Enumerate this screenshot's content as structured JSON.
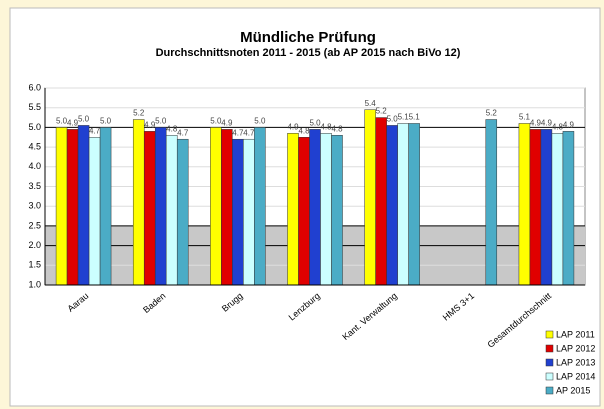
{
  "chart_data": {
    "type": "bar",
    "title": "Mündliche Prüfung",
    "subtitle": "Durchschnittsnoten 2011 - 2015 (ab AP 2015 nach BiVo 12)",
    "categories": [
      "Aarau",
      "Baden",
      "Brugg",
      "Lenzburg",
      "Kant. Verwaltung",
      "HMS 3+1",
      "Gesamtdurchschnitt"
    ],
    "series": [
      {
        "name": "LAP 2011",
        "color": "#ffff00",
        "values": [
          5.0,
          5.2,
          5.0,
          4.85,
          5.45,
          null,
          5.1
        ],
        "value_labels": [
          "5.0",
          "5.2",
          "5.0",
          "4.9",
          "5.4",
          null,
          "5.1"
        ]
      },
      {
        "name": "LAP 2012",
        "color": "#e00000",
        "values": [
          4.95,
          4.9,
          4.95,
          4.75,
          5.25,
          null,
          4.95
        ],
        "value_labels": [
          "4.9",
          "4.9",
          "4.9",
          "4.8",
          "5.2",
          null,
          "4.9"
        ]
      },
      {
        "name": "LAP 2013",
        "color": "#2040d0",
        "values": [
          5.05,
          5.0,
          4.7,
          4.95,
          5.05,
          null,
          4.95
        ],
        "value_labels": [
          "5.0",
          "5.0",
          "4.7",
          "5.0",
          "5.0",
          null,
          "4.9"
        ]
      },
      {
        "name": "LAP 2014",
        "color": "#ccffff",
        "values": [
          4.75,
          4.8,
          4.7,
          4.85,
          5.1,
          null,
          4.85
        ],
        "value_labels": [
          "4.7",
          "4.8",
          "4.7",
          "4.8",
          "5.1",
          null,
          "4.8"
        ]
      },
      {
        "name": "AP 2015",
        "color": "#4bacc6",
        "values": [
          5.0,
          4.7,
          5.0,
          4.8,
          5.1,
          5.2,
          4.9
        ],
        "value_labels": [
          "5.0",
          "4.7",
          "5.0",
          "4.8",
          "5.1",
          "5.2",
          "4.9"
        ]
      }
    ],
    "ylim": [
      1.0,
      6.0
    ],
    "yticks": [
      {
        "value": 1.0,
        "label": "1.0"
      },
      {
        "value": 1.5,
        "label": "1.5"
      },
      {
        "value": 2.0,
        "label": "2.0"
      },
      {
        "value": 2.5,
        "label": "2.5"
      },
      {
        "value": 3.0,
        "label": "3.0"
      },
      {
        "value": 3.5,
        "label": "3.5"
      },
      {
        "value": 4.0,
        "label": "4.0"
      },
      {
        "value": 4.5,
        "label": "4.5"
      },
      {
        "value": 5.0,
        "label": "5.0"
      },
      {
        "value": 5.5,
        "label": "5.5"
      },
      {
        "value": 6.0,
        "label": "6.0"
      }
    ],
    "grid": true,
    "legend": "bottom-right"
  }
}
